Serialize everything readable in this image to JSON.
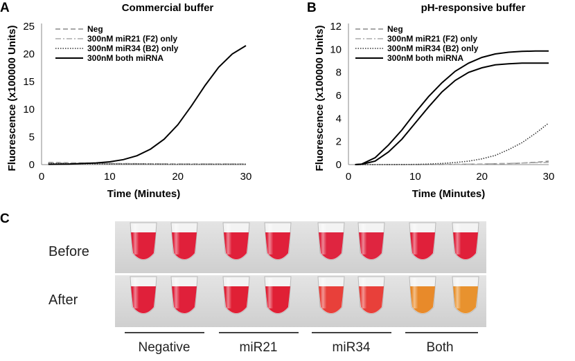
{
  "panel_c": {
    "letter": "C",
    "row_labels": [
      "Before",
      "After"
    ],
    "group_labels": [
      "Negative",
      "miR21",
      "miR34",
      "Both"
    ],
    "tube_colors_before": [
      "#e0203a",
      "#e0203a",
      "#e0203a",
      "#e0203a",
      "#df2540",
      "#df2540",
      "#e0203a",
      "#e0203a"
    ],
    "tube_colors_after": [
      "#e0203a",
      "#e0203a",
      "#e02035",
      "#e02035",
      "#e8403a",
      "#e8403a",
      "#e88a2a",
      "#e8922e"
    ]
  },
  "chart_data": [
    {
      "panel": "A",
      "type": "line",
      "title": "Commercial buffer",
      "xlabel": "Time (Minutes)",
      "ylabel": "Fluorescence (x100000 Units)",
      "xlim": [
        0,
        30
      ],
      "ylim": [
        0,
        25
      ],
      "xticks": [
        0,
        10,
        20,
        30
      ],
      "yticks": [
        0,
        5,
        10,
        15,
        20,
        25
      ],
      "legend_position": "top-left",
      "series": [
        {
          "name": "Neg",
          "style": "dashed",
          "color": "#888888",
          "x": [
            1,
            5,
            10,
            15,
            20,
            25,
            30
          ],
          "y": [
            0.4,
            0.3,
            0.2,
            0.15,
            0.1,
            0.1,
            0.1
          ]
        },
        {
          "name": "300nM miR21 (F2) only",
          "style": "dashdot",
          "color": "#aaaaaa",
          "x": [
            1,
            5,
            10,
            15,
            20,
            25,
            30
          ],
          "y": [
            0.3,
            0.25,
            0.2,
            0.15,
            0.1,
            0.1,
            0.1
          ]
        },
        {
          "name": "300nM miR34 (B2) only",
          "style": "dotted",
          "color": "#333333",
          "x": [
            1,
            5,
            10,
            15,
            20,
            25,
            30
          ],
          "y": [
            0.2,
            0.15,
            0.1,
            0.1,
            0.05,
            0.05,
            0.05
          ]
        },
        {
          "name": "300nM both miRNA",
          "style": "solid",
          "color": "#000000",
          "x": [
            1,
            4,
            6,
            8,
            10,
            12,
            14,
            16,
            18,
            20,
            22,
            24,
            26,
            28,
            30
          ],
          "y": [
            0.05,
            0.1,
            0.2,
            0.3,
            0.5,
            0.9,
            1.6,
            2.8,
            4.6,
            7.2,
            10.6,
            14.3,
            17.6,
            20.0,
            21.5
          ]
        }
      ]
    },
    {
      "panel": "B",
      "type": "line",
      "title": "pH-responsive buffer",
      "xlabel": "Time (Minutes)",
      "ylabel": "Fluorescence (x100000 Units)",
      "xlim": [
        0,
        30
      ],
      "ylim": [
        0,
        12
      ],
      "xticks": [
        0,
        10,
        20,
        30
      ],
      "yticks": [
        0,
        2,
        4,
        6,
        8,
        10,
        12
      ],
      "legend_position": "top-left",
      "series": [
        {
          "name": "Neg",
          "style": "dashed",
          "color": "#888888",
          "x": [
            1,
            5,
            10,
            15,
            20,
            25,
            28,
            30
          ],
          "y": [
            0,
            0,
            0,
            0.02,
            0.05,
            0.1,
            0.2,
            0.3
          ]
        },
        {
          "name": "300nM miR21 (F2) only",
          "style": "dashdot",
          "color": "#aaaaaa",
          "x": [
            1,
            5,
            10,
            15,
            20,
            25,
            30
          ],
          "y": [
            0,
            0,
            0,
            0.02,
            0.05,
            0.12,
            0.2
          ]
        },
        {
          "name": "300nM miR34 (B2) only",
          "style": "dotted",
          "color": "#333333",
          "x": [
            1,
            5,
            10,
            12,
            14,
            16,
            18,
            20,
            22,
            24,
            26,
            28,
            30
          ],
          "y": [
            0,
            0,
            0.02,
            0.05,
            0.1,
            0.18,
            0.3,
            0.5,
            0.8,
            1.3,
            1.9,
            2.7,
            3.6
          ]
        },
        {
          "name": "300nM both miRNA",
          "style": "solid",
          "color": "#000000",
          "x": [
            1,
            2,
            4,
            6,
            8,
            10,
            12,
            14,
            16,
            18,
            20,
            22,
            24,
            26,
            28,
            30
          ],
          "y": [
            0,
            0.05,
            0.6,
            1.7,
            3.0,
            4.5,
            5.9,
            7.1,
            8.1,
            8.8,
            9.3,
            9.6,
            9.75,
            9.82,
            9.85,
            9.85
          ]
        },
        {
          "name": "300nM both miRNA",
          "style": "solid",
          "color": "#000000",
          "legend": false,
          "x": [
            1,
            2,
            4,
            6,
            8,
            10,
            12,
            14,
            16,
            18,
            20,
            22,
            24,
            26,
            28,
            30
          ],
          "y": [
            0,
            0.03,
            0.3,
            1.1,
            2.2,
            3.6,
            5.0,
            6.3,
            7.3,
            8.0,
            8.4,
            8.65,
            8.75,
            8.8,
            8.8,
            8.8
          ]
        }
      ]
    }
  ]
}
